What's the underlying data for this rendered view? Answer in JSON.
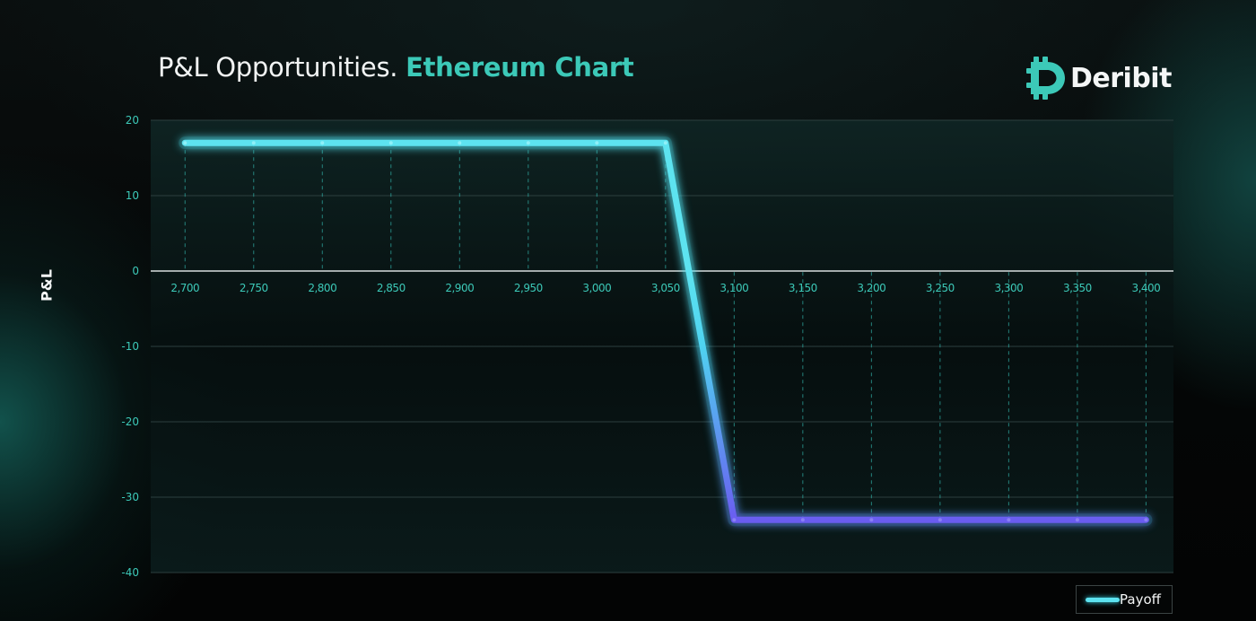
{
  "header": {
    "title_main": "P&L Opportunities.",
    "title_accent": "Ethereum Chart"
  },
  "brand": {
    "name": "Deribit",
    "logo_color": "#3cc9b8"
  },
  "colors": {
    "accent": "#3cc9b8",
    "line_start": "#5de3f0",
    "line_end": "#6a5cf0",
    "tick_label": "#3cc9b8"
  },
  "chart_data": {
    "type": "line",
    "title": "P&L Opportunities. Ethereum Chart",
    "xlabel": "",
    "ylabel": "P&L",
    "x": [
      2700,
      2750,
      2800,
      2850,
      2900,
      2950,
      3000,
      3050,
      3100,
      3150,
      3200,
      3250,
      3300,
      3350,
      3400
    ],
    "x_tick_labels": [
      "2,700",
      "2,750",
      "2,800",
      "2,850",
      "2,900",
      "2,950",
      "3,000",
      "3,050",
      "3,100",
      "3,150",
      "3,200",
      "3,250",
      "3,300",
      "3,350",
      "3,400"
    ],
    "y_ticks": [
      20,
      10,
      0,
      -10,
      -20,
      -30,
      -40
    ],
    "y_tick_labels": [
      "20",
      "10",
      "0",
      "-10",
      "-20",
      "-30",
      "-40"
    ],
    "ylim": [
      -40,
      20
    ],
    "xlim": [
      2675,
      3420
    ],
    "grid": "horizontal solid, vertical dashed drop lines",
    "legend_position": "bottom-right",
    "series": [
      {
        "name": "Payoff",
        "values": [
          17,
          17,
          17,
          17,
          17,
          17,
          17,
          17,
          -33,
          -33,
          -33,
          -33,
          -33,
          -33,
          -33
        ]
      }
    ]
  }
}
